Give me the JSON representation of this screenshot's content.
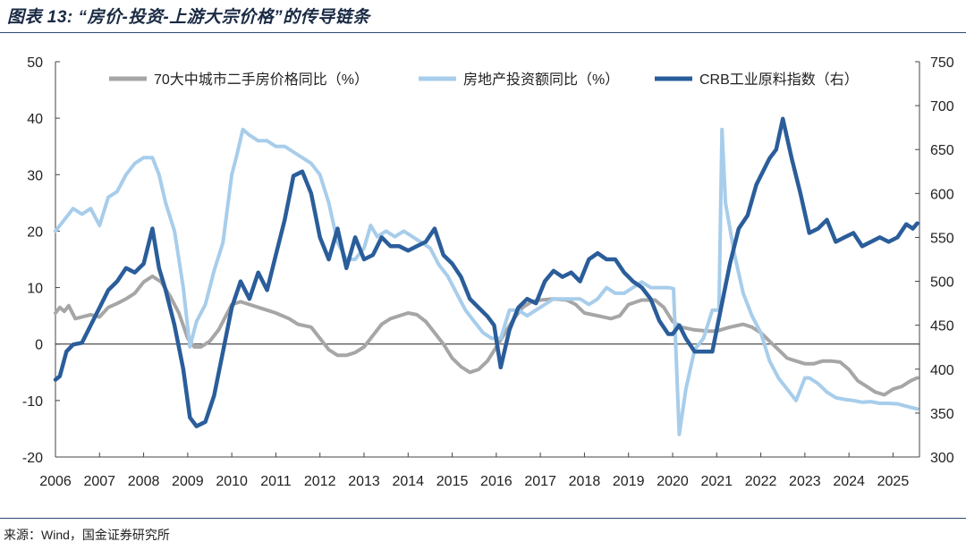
{
  "title": "图表 13:  “房价-投资-上游大宗价格”的传导链条",
  "source": "来源：Wind，国金证券研究所",
  "colors": {
    "gray": "#a6a6a6",
    "light_blue": "#a7cdeb",
    "dark_blue": "#2a5d9a"
  },
  "chart_data": {
    "type": "line",
    "title": "“房价-投资-上游大宗价格”的传导链条",
    "x_ticks": [
      "2006",
      "2007",
      "2008",
      "2009",
      "2010",
      "2011",
      "2012",
      "2013",
      "2014",
      "2015",
      "2016",
      "2017",
      "2018",
      "2019",
      "2020",
      "2021",
      "2022",
      "2023",
      "2024",
      "2025"
    ],
    "x_range": [
      2006.0,
      2025.6
    ],
    "y_left": {
      "ticks": [
        50,
        40,
        30,
        20,
        10,
        0,
        -10,
        -20
      ],
      "range": [
        -20,
        50
      ]
    },
    "y_right": {
      "ticks": [
        750,
        700,
        650,
        600,
        550,
        500,
        450,
        400,
        350,
        300
      ],
      "range": [
        300,
        750
      ]
    },
    "series": [
      {
        "name": "70大中城市二手房价格同比（%）",
        "axis": "left",
        "color": "#a6a6a6",
        "x": [
          2006.0,
          2006.1,
          2006.2,
          2006.3,
          2006.45,
          2006.6,
          2006.8,
          2007.0,
          2007.2,
          2007.4,
          2007.6,
          2007.8,
          2008.0,
          2008.2,
          2008.4,
          2008.6,
          2008.8,
          2009.0,
          2009.15,
          2009.3,
          2009.5,
          2009.7,
          2010.0,
          2010.2,
          2010.4,
          2010.6,
          2010.8,
          2011.0,
          2011.3,
          2011.5,
          2011.8,
          2012.0,
          2012.2,
          2012.4,
          2012.6,
          2012.8,
          2013.0,
          2013.2,
          2013.4,
          2013.6,
          2013.8,
          2014.0,
          2014.2,
          2014.4,
          2014.6,
          2014.8,
          2015.0,
          2015.2,
          2015.4,
          2015.6,
          2015.8,
          2016.0,
          2016.2,
          2016.4,
          2016.6,
          2016.8,
          2017.0,
          2017.3,
          2017.6,
          2017.8,
          2018.0,
          2018.3,
          2018.6,
          2018.8,
          2019.0,
          2019.3,
          2019.6,
          2019.8,
          2020.0,
          2020.2,
          2020.5,
          2020.8,
          2021.0,
          2021.3,
          2021.6,
          2021.8,
          2022.0,
          2022.2,
          2022.4,
          2022.6,
          2022.8,
          2023.0,
          2023.2,
          2023.4,
          2023.6,
          2023.8,
          2024.0,
          2024.2,
          2024.4,
          2024.6,
          2024.8,
          2025.0,
          2025.2,
          2025.4,
          2025.55
        ],
        "y": [
          5.5,
          6.5,
          5.8,
          6.8,
          4.5,
          4.8,
          5.2,
          4.8,
          6.5,
          7.2,
          8.0,
          9.0,
          11.0,
          12.0,
          11.0,
          8.5,
          5.5,
          1.0,
          -0.5,
          -0.5,
          0.5,
          2.5,
          7.0,
          7.5,
          7.0,
          6.5,
          6.0,
          5.5,
          4.5,
          3.5,
          3.0,
          1.0,
          -1.0,
          -2.0,
          -2.0,
          -1.5,
          -0.5,
          1.5,
          3.5,
          4.5,
          5.0,
          5.5,
          5.2,
          4.0,
          2.0,
          0.0,
          -2.5,
          -4.0,
          -5.0,
          -4.5,
          -3.0,
          -0.5,
          2.0,
          4.5,
          6.5,
          7.5,
          7.8,
          8.0,
          7.8,
          7.0,
          5.5,
          5.0,
          4.5,
          5.0,
          7.0,
          7.8,
          7.8,
          6.5,
          4.0,
          3.0,
          2.5,
          2.3,
          2.3,
          3.0,
          3.5,
          3.0,
          2.0,
          0.5,
          -1.0,
          -2.5,
          -3.0,
          -3.5,
          -3.5,
          -3.0,
          -3.0,
          -3.2,
          -4.5,
          -6.5,
          -7.5,
          -8.5,
          -9.0,
          -8.0,
          -7.5,
          -6.5,
          -6.0
        ]
      },
      {
        "name": "房地产投资额同比（%）",
        "axis": "left",
        "color": "#a7cdeb",
        "x": [
          2006.0,
          2006.2,
          2006.4,
          2006.6,
          2006.8,
          2007.0,
          2007.2,
          2007.4,
          2007.6,
          2007.8,
          2008.0,
          2008.2,
          2008.35,
          2008.5,
          2008.7,
          2008.9,
          2009.05,
          2009.2,
          2009.4,
          2009.6,
          2009.8,
          2010.0,
          2010.1,
          2010.25,
          2010.4,
          2010.6,
          2010.8,
          2011.0,
          2011.2,
          2011.4,
          2011.6,
          2011.8,
          2012.0,
          2012.2,
          2012.4,
          2012.6,
          2012.8,
          2013.0,
          2013.15,
          2013.3,
          2013.5,
          2013.7,
          2013.9,
          2014.1,
          2014.3,
          2014.5,
          2014.7,
          2014.9,
          2015.1,
          2015.3,
          2015.5,
          2015.7,
          2015.9,
          2016.1,
          2016.3,
          2016.5,
          2016.7,
          2016.9,
          2017.1,
          2017.3,
          2017.5,
          2017.7,
          2017.9,
          2018.1,
          2018.3,
          2018.5,
          2018.7,
          2018.9,
          2019.1,
          2019.3,
          2019.5,
          2019.7,
          2019.9,
          2020.02,
          2020.15,
          2020.3,
          2020.5,
          2020.7,
          2020.9,
          2021.05,
          2021.12,
          2021.2,
          2021.4,
          2021.6,
          2021.8,
          2022.0,
          2022.2,
          2022.4,
          2022.6,
          2022.8,
          2023.0,
          2023.1,
          2023.3,
          2023.5,
          2023.7,
          2023.9,
          2024.1,
          2024.3,
          2024.5,
          2024.7,
          2024.9,
          2025.1,
          2025.3,
          2025.55
        ],
        "y": [
          20,
          22,
          24,
          23,
          24,
          21,
          26,
          27,
          30,
          32,
          33,
          33,
          30,
          25,
          20,
          10,
          -0.5,
          4,
          7,
          13,
          18,
          30,
          33,
          38,
          37,
          36,
          36,
          35,
          35,
          34,
          33,
          32,
          30,
          25,
          18,
          15,
          15,
          17,
          21,
          19,
          20,
          19,
          20,
          19,
          18,
          17,
          14,
          12,
          9,
          6,
          4,
          2,
          1,
          1,
          6,
          6,
          5,
          6,
          7,
          8,
          8,
          8,
          8,
          7,
          8,
          10,
          9,
          9,
          10,
          11,
          10,
          10,
          10,
          9.8,
          -16,
          -8,
          -1,
          1,
          6,
          6,
          38,
          25,
          16,
          9,
          5,
          2,
          -3,
          -6,
          -8,
          -10,
          -6,
          -6,
          -7,
          -8.5,
          -9.5,
          -9.8,
          -10,
          -10.3,
          -10.2,
          -10.5,
          -10.5,
          -10.6,
          -11,
          -11.5
        ]
      },
      {
        "name": "CRB工业原料指数（右）",
        "axis": "right",
        "color": "#2a5d9a",
        "x": [
          2006.0,
          2006.1,
          2006.25,
          2006.4,
          2006.6,
          2006.8,
          2007.0,
          2007.2,
          2007.4,
          2007.6,
          2007.8,
          2008.0,
          2008.2,
          2008.35,
          2008.5,
          2008.7,
          2008.9,
          2009.05,
          2009.2,
          2009.4,
          2009.6,
          2009.8,
          2010.0,
          2010.2,
          2010.4,
          2010.6,
          2010.8,
          2011.0,
          2011.2,
          2011.4,
          2011.6,
          2011.8,
          2012.0,
          2012.2,
          2012.4,
          2012.6,
          2012.8,
          2013.0,
          2013.2,
          2013.4,
          2013.6,
          2013.8,
          2014.0,
          2014.2,
          2014.4,
          2014.6,
          2014.8,
          2015.0,
          2015.2,
          2015.4,
          2015.6,
          2015.8,
          2015.95,
          2016.1,
          2016.3,
          2016.5,
          2016.7,
          2016.9,
          2017.1,
          2017.3,
          2017.5,
          2017.7,
          2017.9,
          2018.1,
          2018.3,
          2018.5,
          2018.7,
          2018.9,
          2019.1,
          2019.3,
          2019.5,
          2019.7,
          2019.9,
          2020.0,
          2020.15,
          2020.3,
          2020.5,
          2020.7,
          2020.9,
          2021.1,
          2021.3,
          2021.5,
          2021.7,
          2021.9,
          2022.05,
          2022.2,
          2022.35,
          2022.5,
          2022.7,
          2022.9,
          2023.1,
          2023.3,
          2023.5,
          2023.7,
          2023.9,
          2024.1,
          2024.3,
          2024.5,
          2024.7,
          2024.9,
          2025.1,
          2025.3,
          2025.45,
          2025.55
        ],
        "y": [
          388,
          392,
          420,
          428,
          430,
          450,
          470,
          490,
          500,
          515,
          510,
          520,
          560,
          515,
          490,
          450,
          400,
          345,
          335,
          340,
          370,
          420,
          470,
          500,
          480,
          510,
          490,
          530,
          570,
          620,
          625,
          600,
          550,
          525,
          560,
          515,
          550,
          525,
          530,
          550,
          540,
          540,
          535,
          540,
          545,
          560,
          530,
          520,
          505,
          480,
          470,
          460,
          450,
          402,
          445,
          470,
          480,
          475,
          500,
          512,
          505,
          510,
          500,
          525,
          532,
          525,
          525,
          510,
          500,
          493,
          480,
          455,
          440,
          440,
          450,
          435,
          420,
          420,
          420,
          470,
          520,
          560,
          575,
          610,
          625,
          640,
          650,
          685,
          640,
          600,
          555,
          560,
          570,
          545,
          550,
          555,
          540,
          545,
          550,
          545,
          550,
          565,
          560,
          566
        ]
      }
    ],
    "legend_position": "top",
    "grid": false
  }
}
